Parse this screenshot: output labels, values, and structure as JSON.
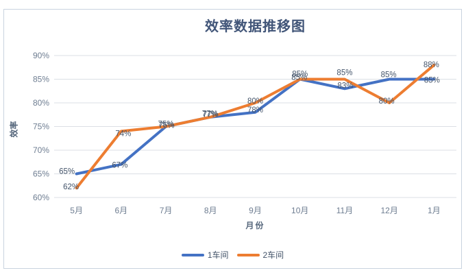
{
  "title": "效率数据推移图",
  "chart_data": {
    "type": "line",
    "categories": [
      "5月",
      "6月",
      "7月",
      "8月",
      "9月",
      "10月",
      "11月",
      "12月",
      "1月"
    ],
    "series": [
      {
        "name": "1车间",
        "color": "#4472C4",
        "values": [
          65,
          67,
          75,
          77,
          78,
          85,
          83,
          85,
          85
        ]
      },
      {
        "name": "2车间",
        "color": "#ED7D31",
        "values": [
          62,
          74,
          75,
          77,
          80,
          85,
          85,
          80,
          88
        ]
      }
    ],
    "title": "效率数据推移图",
    "xlabel": "月份",
    "ylabel": "效率",
    "ylim": [
      60,
      90
    ],
    "ytick_step": 5,
    "ytick_format": "percent",
    "ytick_labels": [
      "60%",
      "65%",
      "70%",
      "75%",
      "80%",
      "85%",
      "90%"
    ],
    "grid": true,
    "data_labels": true,
    "legend_position": "bottom"
  },
  "legend": {
    "items": [
      {
        "label": "1车间",
        "color": "#4472C4"
      },
      {
        "label": "2车间",
        "color": "#ED7D31"
      }
    ]
  },
  "colors": {
    "accent_blue": "#4472C4",
    "accent_orange": "#ED7D31",
    "title_text": "#415578",
    "axis_tick_text": "#6E7D91",
    "axis_title_text": "#56677C",
    "data_label_text": "#44546A",
    "gridline": "#DBDFE4",
    "frame_border": "#C9D3DF"
  }
}
